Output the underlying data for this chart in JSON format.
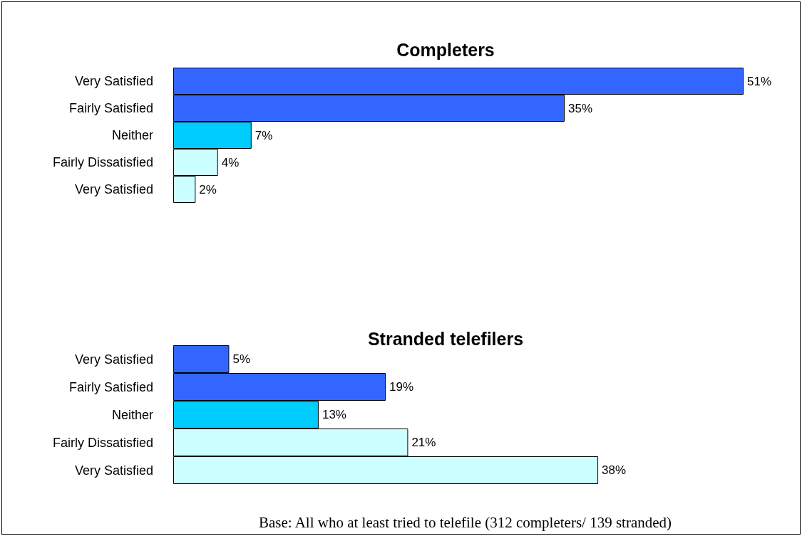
{
  "chart_data": [
    {
      "type": "bar",
      "orientation": "horizontal",
      "title": "Completers",
      "categories": [
        "Very Satisfied",
        "Fairly Satisfied",
        "Neither",
        "Fairly Dissatisfied",
        "Very Satisfied"
      ],
      "values": [
        51,
        35,
        7,
        4,
        2
      ],
      "value_labels": [
        "51%",
        "35%",
        "7%",
        "4%",
        "2%"
      ],
      "colors": [
        "#3366ff",
        "#3366ff",
        "#00ccff",
        "#ccffff",
        "#ccffff"
      ]
    },
    {
      "type": "bar",
      "orientation": "horizontal",
      "title": "Stranded telefilers",
      "categories": [
        "Very Satisfied",
        "Fairly Satisfied",
        "Neither",
        "Fairly Dissatisfied",
        "Very Satisfied"
      ],
      "values": [
        5,
        19,
        13,
        21,
        38
      ],
      "value_labels": [
        "5%",
        "19%",
        "13%",
        "21%",
        "38%"
      ],
      "colors": [
        "#3366ff",
        "#3366ff",
        "#00ccff",
        "#ccffff",
        "#ccffff"
      ],
      "annotations": [
        "Base: All who at least tried to telefile (312 completers/ 139 stranded)"
      ]
    }
  ]
}
